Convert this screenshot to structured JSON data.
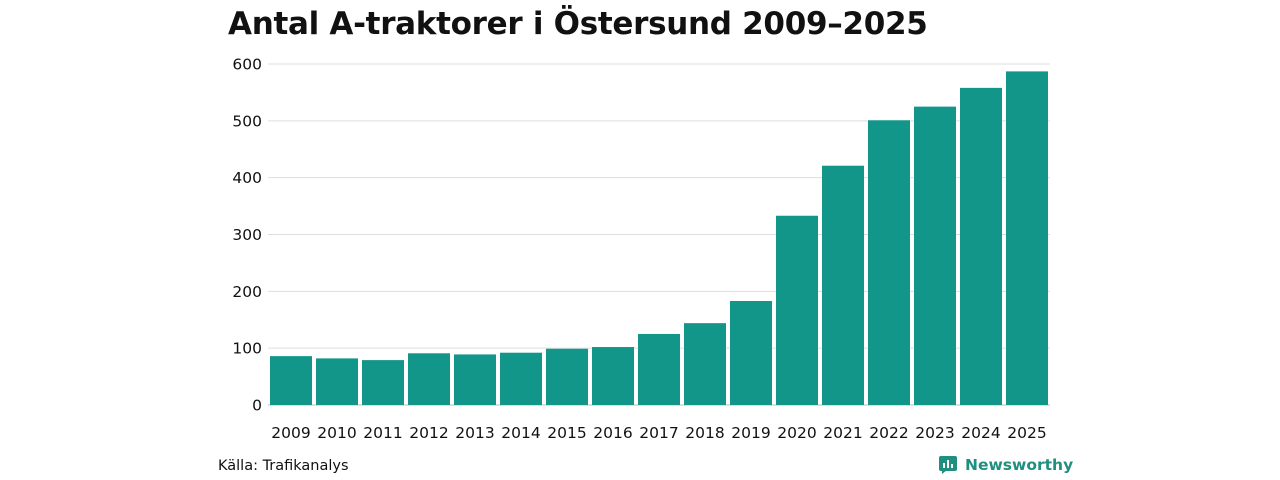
{
  "chart_data": {
    "type": "bar",
    "title": "Antal A-traktorer i Östersund 2009–2025",
    "categories": [
      "2009",
      "2010",
      "2011",
      "2012",
      "2013",
      "2014",
      "2015",
      "2016",
      "2017",
      "2018",
      "2019",
      "2020",
      "2021",
      "2022",
      "2023",
      "2024",
      "2025"
    ],
    "values": [
      86,
      82,
      79,
      91,
      89,
      92,
      99,
      102,
      125,
      144,
      183,
      333,
      421,
      501,
      525,
      558,
      587
    ],
    "ylim": [
      0,
      600
    ],
    "yticks": [
      "0",
      "100",
      "200",
      "300",
      "400",
      "500",
      "600"
    ],
    "grid": true,
    "bar_color": "#13968a"
  },
  "source": "Källa: Trafikanalys",
  "brand": {
    "name": "Newsworthy",
    "icon": "newsworthy-logo-icon",
    "color": "#1f8f7f"
  }
}
